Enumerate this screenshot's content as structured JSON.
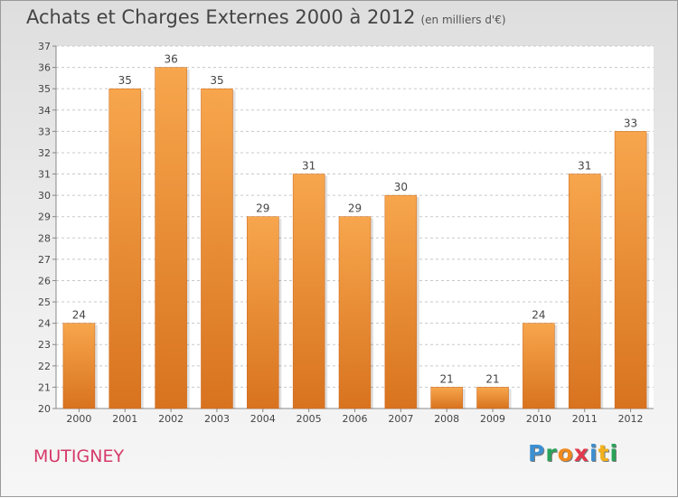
{
  "header": {
    "title": "Achats et Charges Externes 2000 à 2012",
    "unit": "(en milliers d'€)"
  },
  "footer": {
    "city": "MUTIGNEY",
    "logo_letters": [
      "P",
      "r",
      "o",
      "x",
      "i",
      "t",
      "i"
    ]
  },
  "colors": {
    "bar_light": "#f7a64d",
    "bar_dark": "#d8731f",
    "city": "#d63a6a",
    "logo": [
      "#3c8fd0",
      "#2aa25a",
      "#f08a1c",
      "#e23a4c",
      "#3c8fd0",
      "#f2b11c",
      "#2aa25a"
    ]
  },
  "chart_data": {
    "type": "bar",
    "title": "Achats et Charges Externes 2000 à 2012",
    "subtitle": "(en milliers d'€)",
    "categories": [
      "2000",
      "2001",
      "2002",
      "2003",
      "2004",
      "2005",
      "2006",
      "2007",
      "2008",
      "2009",
      "2010",
      "2011",
      "2012"
    ],
    "values": [
      24,
      35,
      36,
      35,
      29,
      31,
      29,
      30,
      21,
      21,
      24,
      31,
      33
    ],
    "ylim": [
      20,
      37
    ],
    "yticks": [
      20,
      21,
      22,
      23,
      24,
      25,
      26,
      27,
      28,
      29,
      30,
      31,
      32,
      33,
      34,
      35,
      36,
      37
    ],
    "grid": "horizontal dashed",
    "xlabel": "",
    "ylabel": ""
  }
}
